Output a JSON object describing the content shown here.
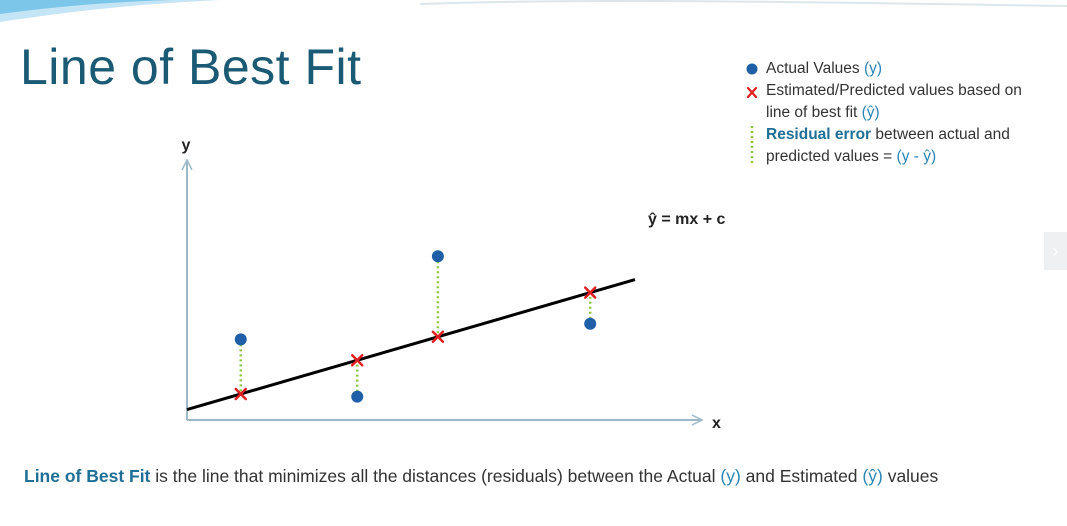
{
  "slide": {
    "title": "Line of Best Fit"
  },
  "legend": {
    "actual_label": "Actual Values ",
    "actual_symbol": "(y)",
    "estimated_line1": "Estimated/Predicted values based on",
    "estimated_line2": "line of best fit ",
    "estimated_symbol": "(ŷ)",
    "residual_bold": "Residual error",
    "residual_rest": " between actual and",
    "residual_line2": "predicted values = ",
    "residual_formula": "(y - ŷ)"
  },
  "chart": {
    "y_axis_label": "y",
    "x_axis_label": "x",
    "line_equation": "ŷ = mx + c"
  },
  "chart_data": {
    "type": "scatter",
    "x_range": [
      0,
      10
    ],
    "y_range": [
      0,
      10
    ],
    "line": {
      "slope": 0.5,
      "intercept": 0.4,
      "x_start": 0,
      "x_end": 10
    },
    "points": [
      {
        "x": 1.2,
        "actual": 3.1
      },
      {
        "x": 3.8,
        "actual": 0.9
      },
      {
        "x": 5.6,
        "actual": 6.3
      },
      {
        "x": 9.0,
        "actual": 3.7
      }
    ]
  },
  "caption": {
    "lead": "Line of Best Fit",
    "part1": " is the line that minimizes all the distances (residuals) between the Actual ",
    "y_symbol": "(y)",
    "part2": " and Estimated ",
    "yhat_symbol": "(ŷ)",
    "part3": " values"
  },
  "colors": {
    "title": "#1b5a74",
    "actual_point": "#1f5fa8",
    "estimated_marker": "#e02020",
    "residual_line": "#8cc63f",
    "fit_line": "#000000"
  },
  "icons": {
    "actual": "blue-dot-icon",
    "estimated": "red-x-icon",
    "residual": "green-dotted-line-icon",
    "next": "chevron-right-icon"
  }
}
